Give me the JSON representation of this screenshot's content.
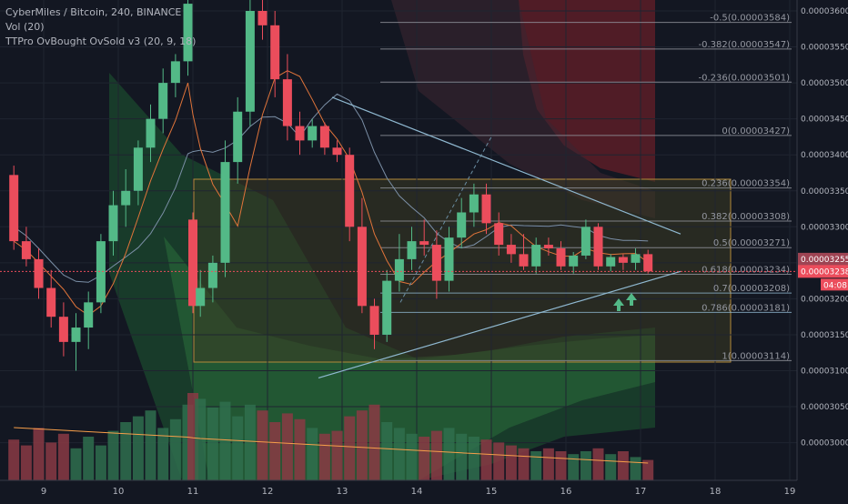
{
  "header": {
    "symbol_line": "CyberMiles / Bitcoin, 240, BINANCE",
    "indicator_vol": "Vol (20)",
    "indicator_ttpro": "TTPro OvBought OvSold v3 (20, 9, 18)"
  },
  "colors": {
    "background": "#131722",
    "up_candle": "#53b987",
    "down_candle": "#eb4d5c",
    "trendline": "#8fb8d0",
    "fib_line": "#9598a1",
    "fib_text": "#9598a1",
    "box_fill": "#3a3a22",
    "box_border": "#b38b3a",
    "price_current_bg": "#eb4d5c",
    "price_current_alt_bg": "#9e4453"
  },
  "price_axis": {
    "labels": [
      "0.00003600",
      "0.00003550",
      "0.00003500",
      "0.00003450",
      "0.00003400",
      "0.00003350",
      "0.00003300",
      "0.00003250",
      "0.00003200",
      "0.00003150",
      "0.00003100",
      "0.00003050",
      "0.00003000"
    ],
    "current_price": "0.00003238",
    "secondary_price": "0.00003255",
    "countdown": "04:08"
  },
  "time_axis": {
    "labels": [
      "9",
      "10",
      "11",
      "12",
      "13",
      "14",
      "15",
      "16",
      "17",
      "18",
      "19"
    ]
  },
  "fib_levels": [
    {
      "label": "-0.5(0.00003584)"
    },
    {
      "label": "-0.382(0.00003547)"
    },
    {
      "label": "-0.236(0.00003501)"
    },
    {
      "label": "0(0.00003427)"
    },
    {
      "label": "0.236(0.00003354)"
    },
    {
      "label": "0.382(0.00003308)"
    },
    {
      "label": "0.5(0.00003271)"
    },
    {
      "label": "0.618(0.00003234)"
    },
    {
      "label": "0.7(0.00003208)"
    },
    {
      "label": "0.786(0.00003181)"
    },
    {
      "label": "1(0.00003114)"
    }
  ],
  "chart_data": {
    "type": "candlestick",
    "y_range": [
      2.98e-05,
      3.61e-05
    ],
    "x_range": [
      8.55,
      19.0
    ],
    "candles": [
      [
        8.6,
        3372,
        3385,
        3268,
        3280
      ],
      [
        8.767,
        3280,
        3300,
        3245,
        3255
      ],
      [
        8.933,
        3255,
        3270,
        3200,
        3215
      ],
      [
        9.1,
        3215,
        3240,
        3160,
        3175
      ],
      [
        9.267,
        3175,
        3195,
        3120,
        3140
      ],
      [
        9.433,
        3140,
        3180,
        3100,
        3160
      ],
      [
        9.6,
        3160,
        3210,
        3130,
        3195
      ],
      [
        9.767,
        3195,
        3290,
        3180,
        3280
      ],
      [
        9.933,
        3280,
        3350,
        3260,
        3330
      ],
      [
        10.1,
        3330,
        3380,
        3300,
        3350
      ],
      [
        10.267,
        3350,
        3420,
        3330,
        3410
      ],
      [
        10.433,
        3410,
        3470,
        3390,
        3450
      ],
      [
        10.6,
        3450,
        3520,
        3430,
        3500
      ],
      [
        10.767,
        3500,
        3540,
        3480,
        3530
      ],
      [
        10.933,
        3530,
        3620,
        3510,
        3610
      ],
      [
        11.0,
        3310,
        3320,
        3180,
        3190
      ],
      [
        11.1,
        3190,
        3240,
        3175,
        3215
      ],
      [
        11.267,
        3215,
        3260,
        3195,
        3250
      ],
      [
        11.433,
        3250,
        3420,
        3230,
        3390
      ],
      [
        11.6,
        3390,
        3480,
        3360,
        3460
      ],
      [
        11.767,
        3460,
        3640,
        3440,
        3600
      ],
      [
        11.933,
        3600,
        3660,
        3560,
        3580
      ],
      [
        12.1,
        3580,
        3600,
        3480,
        3505
      ],
      [
        12.267,
        3505,
        3540,
        3420,
        3440
      ],
      [
        12.433,
        3440,
        3460,
        3400,
        3420
      ],
      [
        12.6,
        3420,
        3450,
        3410,
        3440
      ],
      [
        12.767,
        3440,
        3445,
        3400,
        3410
      ],
      [
        12.933,
        3410,
        3420,
        3390,
        3400
      ],
      [
        13.1,
        3400,
        3410,
        3280,
        3300
      ],
      [
        13.267,
        3300,
        3340,
        3180,
        3190
      ],
      [
        13.433,
        3190,
        3200,
        3130,
        3150
      ],
      [
        13.6,
        3150,
        3240,
        3140,
        3225
      ],
      [
        13.767,
        3225,
        3290,
        3210,
        3255
      ],
      [
        13.933,
        3255,
        3300,
        3240,
        3280
      ],
      [
        14.1,
        3280,
        3310,
        3260,
        3275
      ],
      [
        14.267,
        3275,
        3295,
        3200,
        3225
      ],
      [
        14.433,
        3225,
        3300,
        3210,
        3285
      ],
      [
        14.6,
        3285,
        3340,
        3270,
        3320
      ],
      [
        14.767,
        3320,
        3360,
        3300,
        3345
      ],
      [
        14.933,
        3345,
        3360,
        3290,
        3305
      ],
      [
        15.1,
        3305,
        3320,
        3260,
        3275
      ],
      [
        15.267,
        3275,
        3290,
        3250,
        3262
      ],
      [
        15.433,
        3262,
        3290,
        3240,
        3245
      ],
      [
        15.6,
        3245,
        3285,
        3235,
        3275
      ],
      [
        15.767,
        3275,
        3285,
        3260,
        3270
      ],
      [
        15.933,
        3270,
        3280,
        3240,
        3245
      ],
      [
        16.1,
        3245,
        3265,
        3235,
        3260
      ],
      [
        16.267,
        3260,
        3310,
        3255,
        3300
      ],
      [
        16.433,
        3300,
        3305,
        3240,
        3245
      ],
      [
        16.6,
        3245,
        3262,
        3238,
        3258
      ],
      [
        16.767,
        3258,
        3262,
        3240,
        3250
      ],
      [
        16.933,
        3250,
        3270,
        3240,
        3262
      ],
      [
        17.1,
        3262,
        3268,
        3235,
        3238
      ]
    ],
    "volume": [
      [
        8.6,
        14
      ],
      [
        8.767,
        12
      ],
      [
        8.933,
        18
      ],
      [
        9.1,
        13
      ],
      [
        9.267,
        16
      ],
      [
        9.433,
        11
      ],
      [
        9.6,
        15
      ],
      [
        9.767,
        12
      ],
      [
        9.933,
        17
      ],
      [
        10.1,
        20
      ],
      [
        10.267,
        22
      ],
      [
        10.433,
        24
      ],
      [
        10.6,
        18
      ],
      [
        10.767,
        21
      ],
      [
        10.933,
        26
      ],
      [
        11.0,
        30
      ],
      [
        11.1,
        28
      ],
      [
        11.267,
        25
      ],
      [
        11.433,
        27
      ],
      [
        11.6,
        22
      ],
      [
        11.767,
        26
      ],
      [
        11.933,
        24
      ],
      [
        12.1,
        20
      ],
      [
        12.267,
        23
      ],
      [
        12.433,
        21
      ],
      [
        12.6,
        18
      ],
      [
        12.767,
        16
      ],
      [
        12.933,
        17
      ],
      [
        13.1,
        22
      ],
      [
        13.267,
        24
      ],
      [
        13.433,
        26
      ],
      [
        13.6,
        20
      ],
      [
        13.767,
        18
      ],
      [
        13.933,
        16
      ],
      [
        14.1,
        15
      ],
      [
        14.267,
        17
      ],
      [
        14.433,
        18
      ],
      [
        14.6,
        16
      ],
      [
        14.767,
        15
      ],
      [
        14.933,
        14
      ],
      [
        15.1,
        13
      ],
      [
        15.267,
        12
      ],
      [
        15.433,
        11
      ],
      [
        15.6,
        10
      ],
      [
        15.767,
        11
      ],
      [
        15.933,
        10
      ],
      [
        16.1,
        9
      ],
      [
        16.267,
        10
      ],
      [
        16.433,
        11
      ],
      [
        16.6,
        9
      ],
      [
        16.767,
        10
      ],
      [
        16.933,
        8
      ],
      [
        17.1,
        7
      ]
    ]
  }
}
